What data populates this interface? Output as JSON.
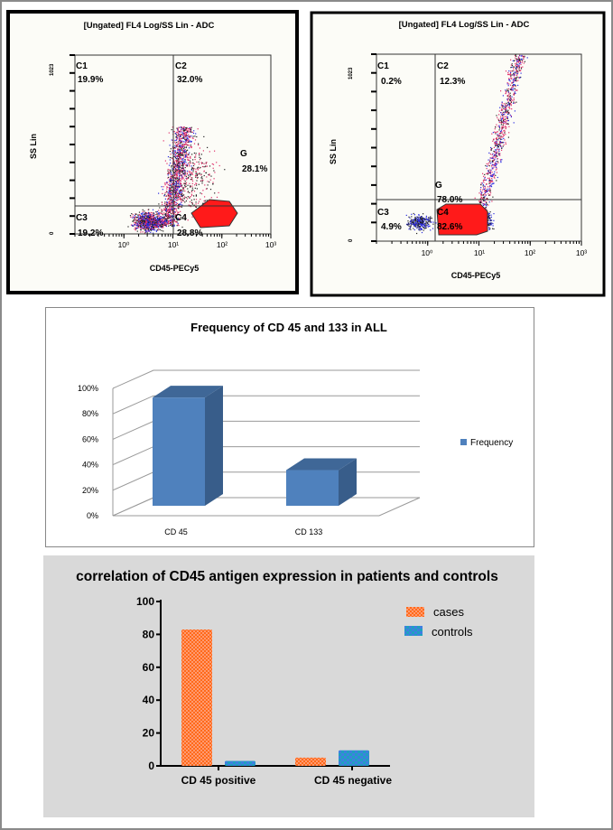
{
  "chart_data": [
    {
      "type": "scatter",
      "subtype": "flow-cytometry-dot-plot",
      "title": "[Ungated] FL4 Log/SS Lin - ADC",
      "xlabel": "CD45-PECy5",
      "ylabel": "SS Lin",
      "x_scale": "log",
      "xlim": [
        0.1,
        1000
      ],
      "x_ticks": [
        "10⁰",
        "10¹",
        "10²",
        "10³"
      ],
      "y_ticks": [
        "0",
        "1023"
      ],
      "quadrants": [
        {
          "name": "C1",
          "value": "19.9%"
        },
        {
          "name": "C2",
          "value": "32.0%"
        },
        {
          "name": "C3",
          "value": "19.2%"
        },
        {
          "name": "C4",
          "value": "28.8%"
        }
      ],
      "gate": {
        "name": "G",
        "value": "28.1%"
      },
      "colors": {
        "gate": "#ff1a1a",
        "dots": [
          "#e0306a",
          "#2a2ae0",
          "#222222"
        ]
      }
    },
    {
      "type": "scatter",
      "subtype": "flow-cytometry-dot-plot",
      "title": "[Ungated] FL4 Log/SS Lin - ADC",
      "xlabel": "CD45-PECy5",
      "ylabel": "SS Lin",
      "x_scale": "log",
      "xlim": [
        0.1,
        1000
      ],
      "x_ticks": [
        "10⁰",
        "10¹",
        "10²",
        "10³"
      ],
      "y_ticks": [
        "0",
        "1023"
      ],
      "quadrants": [
        {
          "name": "C1",
          "value": "0.2%"
        },
        {
          "name": "C2",
          "value": "12.3%"
        },
        {
          "name": "C3",
          "value": "4.9%"
        },
        {
          "name": "C4",
          "value": "82.6%"
        }
      ],
      "gate": {
        "name": "G",
        "value": "78.0%"
      },
      "colors": {
        "gate": "#ff1a1a",
        "dots": [
          "#e0306a",
          "#2a2ae0",
          "#222222"
        ]
      }
    },
    {
      "type": "bar",
      "style": "3d-column",
      "title": "Frequency of CD 45 and 133 in ALL",
      "categories": [
        "CD 45",
        "CD 133"
      ],
      "series": [
        {
          "name": "Frequency",
          "values": [
            85,
            28
          ]
        }
      ],
      "y_ticks": [
        "0%",
        "20%",
        "40%",
        "60%",
        "80%",
        "100%"
      ],
      "ylim": [
        0,
        100
      ],
      "grid": true,
      "legend": "right",
      "colors": {
        "bar": "#4f81bd",
        "bar_side": "#385d8a"
      }
    },
    {
      "type": "bar",
      "title": "correlation of CD45 antigen expression in patients and controls",
      "categories": [
        "CD 45 positive",
        "CD 45 negative"
      ],
      "series": [
        {
          "name": "cases",
          "values": [
            83,
            5
          ]
        },
        {
          "name": "controls",
          "values": [
            3,
            9.5
          ]
        }
      ],
      "y_ticks": [
        "0",
        "20",
        "40",
        "60",
        "80",
        "100"
      ],
      "ylim": [
        0,
        100
      ],
      "grid": false,
      "legend": "top-right",
      "colors": {
        "cases": "#ff6a1a",
        "controls": "#1fa0c0",
        "background": "#d9d9d9"
      }
    }
  ]
}
